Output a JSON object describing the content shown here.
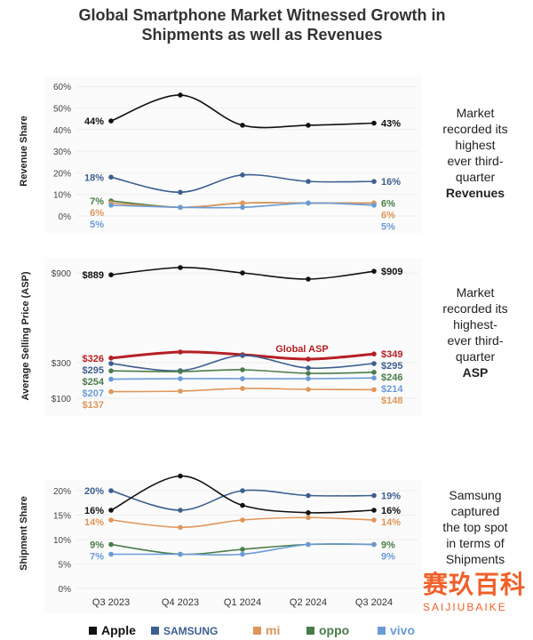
{
  "title": "Global Smartphone Market Witnessed Growth in Shipments as well as Revenues",
  "colors": {
    "Apple": "#111111",
    "Samsung": "#3d5f8f",
    "Xiaomi": "#e0965a",
    "Oppo": "#4a7c4a",
    "vivo": "#6b9bd6",
    "Global ASP": "#b52025"
  },
  "categories": [
    "Q3 2023",
    "Q4 2023",
    "Q1 2024",
    "Q2 2024",
    "Q3 2024"
  ],
  "category_visible": [
    "Q3 2023",
    "Q4 2023",
    "Q1 2024",
    "Q2 2024",
    "Q3"
  ],
  "legend": [
    {
      "name": "Apple",
      "icon": "apple-logo"
    },
    {
      "name": "SAMSUNG"
    },
    {
      "name": "mi",
      "icon": "xiaomi-logo"
    },
    {
      "name": "oppo"
    },
    {
      "name": "vivo"
    }
  ],
  "watermark": {
    "cn": "赛玖百科",
    "en": "SAIJIUBAIKE"
  },
  "chart_data": [
    {
      "type": "line",
      "ylabel": "Revenue Share",
      "ylim": [
        0,
        60
      ],
      "ticks": [
        "0%",
        "10%",
        "20%",
        "30%",
        "40%",
        "50%",
        "60%"
      ],
      "series": [
        {
          "name": "Apple",
          "values": [
            44,
            56,
            42,
            42,
            43
          ],
          "labels": [
            "44%",
            "43%"
          ]
        },
        {
          "name": "Samsung",
          "values": [
            18,
            11,
            19,
            16,
            16
          ],
          "labels": [
            "18%",
            "16%"
          ]
        },
        {
          "name": "Oppo",
          "values": [
            7,
            4,
            6,
            6,
            6
          ],
          "labels": [
            "7%",
            "6%"
          ]
        },
        {
          "name": "Xiaomi",
          "values": [
            6,
            4,
            6,
            6,
            6
          ],
          "labels": [
            "6%",
            "6%"
          ]
        },
        {
          "name": "vivo",
          "values": [
            5,
            4,
            4,
            6,
            5
          ],
          "labels": [
            "5%",
            "5%"
          ]
        }
      ],
      "annotation": [
        "Market",
        "recorded its",
        "highest",
        "ever third-",
        "quarter",
        "Revenues"
      ]
    },
    {
      "type": "line",
      "ylabel": "Average Selling Price (ASP)",
      "ticks": [
        "$100",
        "$300",
        "$900"
      ],
      "axis_break": true,
      "series": [
        {
          "name": "Apple",
          "values": [
            889,
            930,
            900,
            865,
            909
          ],
          "labels": [
            "$889",
            "$909"
          ]
        },
        {
          "name": "Global ASP",
          "values": [
            326,
            360,
            345,
            320,
            349
          ],
          "labels": [
            "$326",
            "$349"
          ],
          "inline_label": "Global ASP"
        },
        {
          "name": "Samsung",
          "values": [
            295,
            255,
            340,
            270,
            295
          ],
          "labels": [
            "$295",
            "$295"
          ]
        },
        {
          "name": "Oppo",
          "values": [
            254,
            250,
            260,
            240,
            246
          ],
          "labels": [
            "$254",
            "$246"
          ]
        },
        {
          "name": "vivo",
          "values": [
            207,
            210,
            210,
            210,
            214
          ],
          "labels": [
            "$207",
            "$214"
          ]
        },
        {
          "name": "Xiaomi",
          "values": [
            137,
            140,
            155,
            150,
            148
          ],
          "labels": [
            "$137",
            "$148"
          ]
        }
      ],
      "annotation": [
        "Market",
        "recorded its",
        "highest-",
        "ever third-",
        "quarter",
        "ASP"
      ]
    },
    {
      "type": "line",
      "ylabel": "Shipment Share",
      "ylim": [
        0,
        20
      ],
      "ticks": [
        "0%",
        "5%",
        "10%",
        "15%",
        "20%"
      ],
      "series": [
        {
          "name": "Samsung",
          "values": [
            20,
            16,
            20,
            19,
            19
          ],
          "labels": [
            "20%",
            "19%"
          ]
        },
        {
          "name": "Apple",
          "values": [
            16,
            23,
            17,
            15.5,
            16
          ],
          "labels": [
            "16%",
            "16%"
          ]
        },
        {
          "name": "Xiaomi",
          "values": [
            14,
            12.5,
            14,
            14.5,
            14
          ],
          "labels": [
            "14%",
            "14%"
          ]
        },
        {
          "name": "Oppo",
          "values": [
            9,
            7,
            8,
            9,
            9
          ],
          "labels": [
            "9%",
            "9%"
          ]
        },
        {
          "name": "vivo",
          "values": [
            7,
            7,
            7,
            9,
            9
          ],
          "labels": [
            "7%",
            "9%"
          ]
        }
      ],
      "annotation": [
        "Samsung",
        "captured",
        "the top spot",
        "in terms of",
        "Shipments"
      ]
    }
  ]
}
